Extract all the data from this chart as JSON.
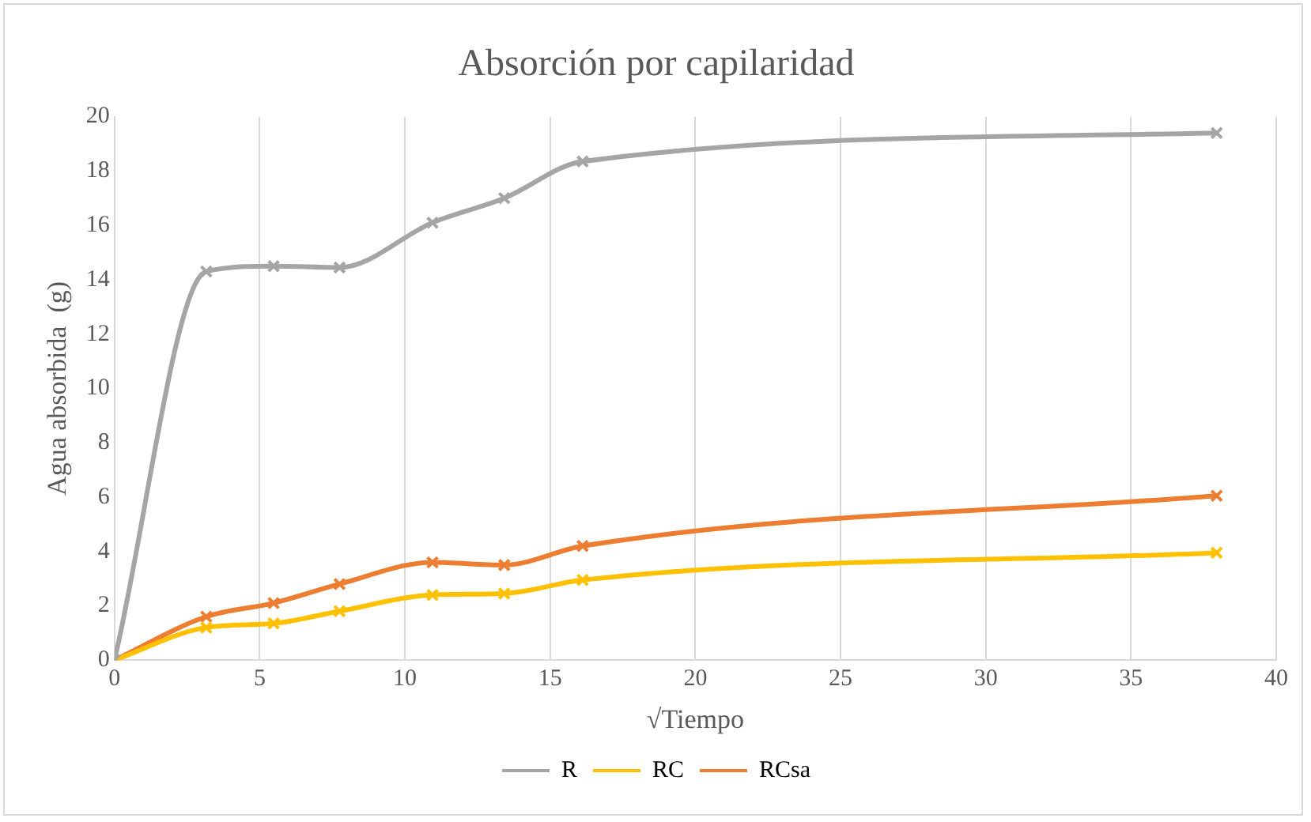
{
  "chart_data": {
    "type": "line",
    "title": "Absorción por capilaridad",
    "xlabel": "√Tiempo",
    "ylabel": "Agua absorbida  (g)",
    "x": [
      0,
      3.16,
      5.48,
      7.75,
      10.95,
      13.42,
      16.12,
      37.95
    ],
    "series": [
      {
        "name": "R",
        "color": "#a5a5a5",
        "values": [
          0,
          14.3,
          14.5,
          14.45,
          16.1,
          17.0,
          18.35,
          19.4
        ]
      },
      {
        "name": "RC",
        "color": "#ffc000",
        "values": [
          0,
          1.2,
          1.35,
          1.8,
          2.4,
          2.45,
          2.95,
          3.95
        ]
      },
      {
        "name": "RCsa",
        "color": "#ed7d31",
        "values": [
          0,
          1.6,
          2.1,
          2.8,
          3.6,
          3.5,
          4.2,
          6.05
        ]
      }
    ],
    "xlim": [
      0,
      40
    ],
    "xticks": [
      0,
      5,
      10,
      15,
      20,
      25,
      30,
      35,
      40
    ],
    "ylim": [
      0,
      20
    ],
    "yticks": [
      0,
      2,
      4,
      6,
      8,
      10,
      12,
      14,
      16,
      18,
      20
    ],
    "grid": "x",
    "legend": "bottom",
    "marker": "cross",
    "line_style": "solid"
  }
}
